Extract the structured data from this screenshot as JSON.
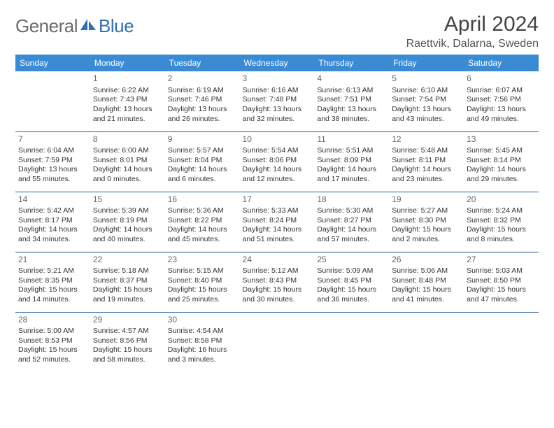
{
  "logo": {
    "text1": "General",
    "text2": "Blue"
  },
  "title": "April 2024",
  "location": "Raettvik, Dalarna, Sweden",
  "colors": {
    "header_bg": "#3b8bd4",
    "header_text": "#ffffff",
    "border": "#1f5f9e",
    "logo_gray": "#6b6b6b",
    "logo_blue": "#2e6fb5"
  },
  "dow": [
    "Sunday",
    "Monday",
    "Tuesday",
    "Wednesday",
    "Thursday",
    "Friday",
    "Saturday"
  ],
  "weeks": [
    [
      null,
      {
        "n": "1",
        "rise": "6:22 AM",
        "set": "7:43 PM",
        "day": "13 hours and 21 minutes."
      },
      {
        "n": "2",
        "rise": "6:19 AM",
        "set": "7:46 PM",
        "day": "13 hours and 26 minutes."
      },
      {
        "n": "3",
        "rise": "6:16 AM",
        "set": "7:48 PM",
        "day": "13 hours and 32 minutes."
      },
      {
        "n": "4",
        "rise": "6:13 AM",
        "set": "7:51 PM",
        "day": "13 hours and 38 minutes."
      },
      {
        "n": "5",
        "rise": "6:10 AM",
        "set": "7:54 PM",
        "day": "13 hours and 43 minutes."
      },
      {
        "n": "6",
        "rise": "6:07 AM",
        "set": "7:56 PM",
        "day": "13 hours and 49 minutes."
      }
    ],
    [
      {
        "n": "7",
        "rise": "6:04 AM",
        "set": "7:59 PM",
        "day": "13 hours and 55 minutes."
      },
      {
        "n": "8",
        "rise": "6:00 AM",
        "set": "8:01 PM",
        "day": "14 hours and 0 minutes."
      },
      {
        "n": "9",
        "rise": "5:57 AM",
        "set": "8:04 PM",
        "day": "14 hours and 6 minutes."
      },
      {
        "n": "10",
        "rise": "5:54 AM",
        "set": "8:06 PM",
        "day": "14 hours and 12 minutes."
      },
      {
        "n": "11",
        "rise": "5:51 AM",
        "set": "8:09 PM",
        "day": "14 hours and 17 minutes."
      },
      {
        "n": "12",
        "rise": "5:48 AM",
        "set": "8:11 PM",
        "day": "14 hours and 23 minutes."
      },
      {
        "n": "13",
        "rise": "5:45 AM",
        "set": "8:14 PM",
        "day": "14 hours and 29 minutes."
      }
    ],
    [
      {
        "n": "14",
        "rise": "5:42 AM",
        "set": "8:17 PM",
        "day": "14 hours and 34 minutes."
      },
      {
        "n": "15",
        "rise": "5:39 AM",
        "set": "8:19 PM",
        "day": "14 hours and 40 minutes."
      },
      {
        "n": "16",
        "rise": "5:36 AM",
        "set": "8:22 PM",
        "day": "14 hours and 45 minutes."
      },
      {
        "n": "17",
        "rise": "5:33 AM",
        "set": "8:24 PM",
        "day": "14 hours and 51 minutes."
      },
      {
        "n": "18",
        "rise": "5:30 AM",
        "set": "8:27 PM",
        "day": "14 hours and 57 minutes."
      },
      {
        "n": "19",
        "rise": "5:27 AM",
        "set": "8:30 PM",
        "day": "15 hours and 2 minutes."
      },
      {
        "n": "20",
        "rise": "5:24 AM",
        "set": "8:32 PM",
        "day": "15 hours and 8 minutes."
      }
    ],
    [
      {
        "n": "21",
        "rise": "5:21 AM",
        "set": "8:35 PM",
        "day": "15 hours and 14 minutes."
      },
      {
        "n": "22",
        "rise": "5:18 AM",
        "set": "8:37 PM",
        "day": "15 hours and 19 minutes."
      },
      {
        "n": "23",
        "rise": "5:15 AM",
        "set": "8:40 PM",
        "day": "15 hours and 25 minutes."
      },
      {
        "n": "24",
        "rise": "5:12 AM",
        "set": "8:43 PM",
        "day": "15 hours and 30 minutes."
      },
      {
        "n": "25",
        "rise": "5:09 AM",
        "set": "8:45 PM",
        "day": "15 hours and 36 minutes."
      },
      {
        "n": "26",
        "rise": "5:06 AM",
        "set": "8:48 PM",
        "day": "15 hours and 41 minutes."
      },
      {
        "n": "27",
        "rise": "5:03 AM",
        "set": "8:50 PM",
        "day": "15 hours and 47 minutes."
      }
    ],
    [
      {
        "n": "28",
        "rise": "5:00 AM",
        "set": "8:53 PM",
        "day": "15 hours and 52 minutes."
      },
      {
        "n": "29",
        "rise": "4:57 AM",
        "set": "8:56 PM",
        "day": "15 hours and 58 minutes."
      },
      {
        "n": "30",
        "rise": "4:54 AM",
        "set": "8:58 PM",
        "day": "16 hours and 3 minutes."
      },
      null,
      null,
      null,
      null
    ]
  ],
  "labels": {
    "sunrise": "Sunrise:",
    "sunset": "Sunset:",
    "daylight": "Daylight:"
  }
}
